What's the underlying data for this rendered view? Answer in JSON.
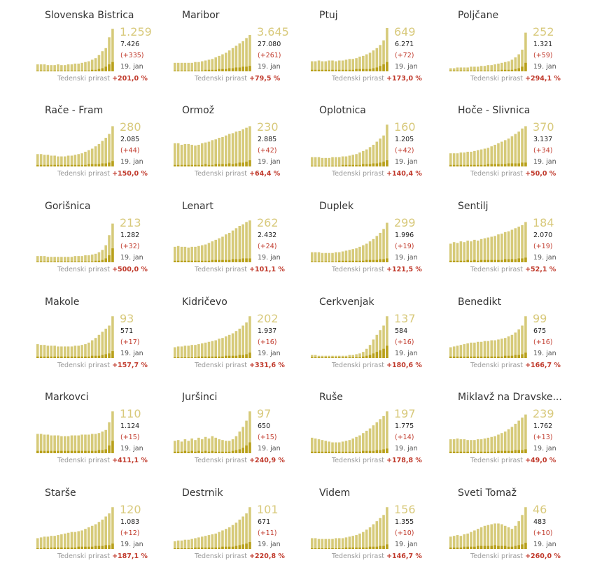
{
  "labels": {
    "growth_label": "Tedenski prirast",
    "date": "19. jan"
  },
  "colors": {
    "bar_total": "#d6ca79",
    "bar_recent": "#b8a01a",
    "accent": "#c0392b"
  },
  "chart_data": [
    {
      "type": "bar",
      "title": "Slovenska Bistrica",
      "current": "1.259",
      "total": "7.426",
      "delta": "(+335)",
      "growth": "+201,0 %",
      "values": [
        9,
        9,
        9,
        8,
        8,
        8,
        9,
        8,
        8,
        9,
        9,
        10,
        10,
        11,
        12,
        13,
        15,
        17,
        21,
        26,
        30,
        44,
        55
      ],
      "recent": [
        1,
        1,
        1,
        1,
        1,
        1,
        1,
        1,
        1,
        1,
        1,
        1,
        1,
        1,
        1,
        1,
        2,
        2,
        3,
        4,
        6,
        9,
        12
      ]
    },
    {
      "type": "bar",
      "title": "Maribor",
      "current": "3.645",
      "total": "27.080",
      "delta": "(+261)",
      "growth": "+79,5 %",
      "values": [
        11,
        11,
        11,
        11,
        11,
        11,
        12,
        12,
        13,
        14,
        15,
        16,
        18,
        20,
        22,
        24,
        27,
        30,
        33,
        36,
        39,
        43,
        47
      ],
      "recent": [
        1,
        1,
        1,
        1,
        1,
        1,
        1,
        1,
        1,
        2,
        2,
        2,
        2,
        3,
        3,
        3,
        4,
        4,
        5,
        5,
        6,
        6,
        7
      ]
    },
    {
      "type": "bar",
      "title": "Ptuj",
      "current": "649",
      "total": "6.271",
      "delta": "(+72)",
      "growth": "+173,0 %",
      "values": [
        13,
        13,
        14,
        13,
        13,
        14,
        14,
        13,
        14,
        14,
        15,
        16,
        16,
        17,
        19,
        20,
        22,
        24,
        27,
        30,
        34,
        40,
        56
      ],
      "recent": [
        2,
        2,
        2,
        2,
        2,
        2,
        2,
        2,
        2,
        2,
        2,
        2,
        2,
        3,
        3,
        3,
        3,
        3,
        4,
        5,
        7,
        9,
        12
      ]
    },
    {
      "type": "bar",
      "title": "Poljčane",
      "current": "252",
      "total": "1.321",
      "delta": "(+59)",
      "growth": "+294,1 %",
      "values": [
        4,
        4,
        5,
        5,
        5,
        5,
        6,
        6,
        6,
        7,
        7,
        8,
        8,
        9,
        10,
        11,
        12,
        13,
        15,
        18,
        22,
        28,
        50
      ],
      "recent": [
        1,
        1,
        1,
        1,
        1,
        1,
        1,
        1,
        1,
        1,
        1,
        1,
        1,
        1,
        1,
        2,
        2,
        2,
        2,
        3,
        4,
        6,
        11
      ]
    },
    {
      "type": "bar",
      "title": "Rače - Fram",
      "current": "280",
      "total": "2.085",
      "delta": "(+44)",
      "growth": "+150,0 %",
      "values": [
        16,
        16,
        15,
        15,
        14,
        14,
        13,
        13,
        13,
        14,
        14,
        15,
        16,
        17,
        19,
        21,
        23,
        26,
        29,
        33,
        37,
        42,
        52
      ],
      "recent": [
        2,
        2,
        2,
        2,
        2,
        2,
        2,
        2,
        2,
        2,
        2,
        2,
        2,
        2,
        2,
        3,
        3,
        3,
        3,
        4,
        4,
        5,
        7
      ]
    },
    {
      "type": "bar",
      "title": "Ormož",
      "current": "230",
      "total": "2.885",
      "delta": "(+42)",
      "growth": "+64,4 %",
      "values": [
        30,
        30,
        28,
        29,
        29,
        28,
        27,
        28,
        30,
        31,
        32,
        34,
        35,
        37,
        38,
        40,
        42,
        43,
        45,
        46,
        48,
        50,
        52
      ],
      "recent": [
        2,
        2,
        2,
        2,
        2,
        2,
        2,
        2,
        2,
        3,
        2,
        2,
        3,
        3,
        3,
        3,
        4,
        3,
        4,
        5,
        5,
        6,
        8
      ]
    },
    {
      "type": "bar",
      "title": "Oplotnica",
      "current": "160",
      "total": "1.205",
      "delta": "(+42)",
      "growth": "+140,4 %",
      "values": [
        12,
        12,
        12,
        11,
        11,
        11,
        12,
        12,
        12,
        13,
        13,
        14,
        15,
        16,
        18,
        20,
        22,
        25,
        28,
        32,
        36,
        40,
        54
      ],
      "recent": [
        1,
        1,
        1,
        1,
        1,
        1,
        1,
        1,
        1,
        2,
        2,
        2,
        2,
        2,
        2,
        3,
        3,
        3,
        4,
        4,
        5,
        6,
        8
      ]
    },
    {
      "type": "bar",
      "title": "Hoče - Slivnica",
      "current": "370",
      "total": "3.137",
      "delta": "(+34)",
      "growth": "+50,0 %",
      "values": [
        17,
        17,
        17,
        18,
        18,
        19,
        19,
        20,
        21,
        22,
        23,
        24,
        26,
        28,
        30,
        32,
        34,
        36,
        39,
        42,
        45,
        49,
        52
      ],
      "recent": [
        2,
        2,
        2,
        2,
        2,
        2,
        2,
        2,
        2,
        2,
        2,
        3,
        3,
        3,
        3,
        3,
        3,
        4,
        4,
        4,
        4,
        5,
        5
      ]
    },
    {
      "type": "bar",
      "title": "Gorišnica",
      "current": "213",
      "total": "1.282",
      "delta": "(+32)",
      "growth": "+500,0 %",
      "values": [
        8,
        8,
        8,
        7,
        7,
        7,
        7,
        7,
        7,
        7,
        7,
        8,
        8,
        8,
        9,
        9,
        10,
        11,
        13,
        16,
        22,
        35,
        50
      ],
      "recent": [
        1,
        1,
        1,
        1,
        1,
        1,
        1,
        1,
        1,
        1,
        1,
        1,
        1,
        1,
        1,
        1,
        1,
        2,
        2,
        3,
        5,
        9,
        18
      ]
    },
    {
      "type": "bar",
      "title": "Lenart",
      "current": "262",
      "total": "2.432",
      "delta": "(+24)",
      "growth": "+101,1 %",
      "values": [
        20,
        21,
        20,
        20,
        19,
        20,
        20,
        21,
        22,
        23,
        25,
        27,
        29,
        31,
        33,
        36,
        38,
        41,
        44,
        47,
        49,
        52,
        54
      ],
      "recent": [
        2,
        2,
        2,
        2,
        2,
        2,
        2,
        2,
        2,
        2,
        2,
        3,
        3,
        3,
        3,
        3,
        3,
        4,
        4,
        4,
        5,
        5,
        5
      ]
    },
    {
      "type": "bar",
      "title": "Duplek",
      "current": "299",
      "total": "1.996",
      "delta": "(+19)",
      "growth": "+121,5 %",
      "values": [
        13,
        13,
        13,
        12,
        12,
        12,
        12,
        13,
        13,
        14,
        15,
        16,
        17,
        18,
        20,
        22,
        24,
        27,
        30,
        34,
        38,
        43,
        51
      ],
      "recent": [
        1,
        1,
        1,
        1,
        1,
        1,
        1,
        1,
        2,
        2,
        2,
        2,
        2,
        2,
        2,
        2,
        3,
        3,
        3,
        3,
        4,
        4,
        5
      ]
    },
    {
      "type": "bar",
      "title": "Šentilj",
      "current": "184",
      "total": "2.070",
      "delta": "(+19)",
      "growth": "+52,1 %",
      "values": [
        24,
        26,
        25,
        27,
        26,
        28,
        27,
        29,
        28,
        30,
        31,
        32,
        33,
        34,
        36,
        37,
        39,
        40,
        42,
        44,
        46,
        48,
        52
      ],
      "recent": [
        2,
        2,
        2,
        2,
        2,
        3,
        2,
        3,
        2,
        3,
        3,
        3,
        3,
        3,
        3,
        3,
        4,
        4,
        4,
        4,
        5,
        5,
        6
      ]
    },
    {
      "type": "bar",
      "title": "Makole",
      "current": "93",
      "total": "571",
      "delta": "(+17)",
      "growth": "+157,7 %",
      "values": [
        18,
        17,
        17,
        16,
        16,
        16,
        15,
        15,
        15,
        15,
        15,
        16,
        16,
        17,
        18,
        20,
        23,
        26,
        30,
        34,
        38,
        42,
        54
      ],
      "recent": [
        2,
        2,
        2,
        2,
        2,
        2,
        2,
        2,
        2,
        2,
        2,
        2,
        2,
        2,
        2,
        2,
        3,
        3,
        3,
        4,
        5,
        6,
        9
      ]
    },
    {
      "type": "bar",
      "title": "Kidričevo",
      "current": "202",
      "total": "1.937",
      "delta": "(+16)",
      "growth": "+331,6 %",
      "values": [
        14,
        15,
        15,
        16,
        16,
        17,
        17,
        18,
        19,
        20,
        21,
        22,
        23,
        25,
        26,
        28,
        30,
        32,
        35,
        38,
        42,
        46,
        54
      ],
      "recent": [
        1,
        1,
        1,
        1,
        1,
        1,
        1,
        2,
        2,
        2,
        2,
        2,
        2,
        2,
        2,
        3,
        3,
        3,
        3,
        4,
        4,
        5,
        7
      ]
    },
    {
      "type": "bar",
      "title": "Cerkvenjak",
      "current": "137",
      "total": "584",
      "delta": "(+16)",
      "growth": "+180,6 %",
      "values": [
        4,
        4,
        3,
        3,
        3,
        3,
        3,
        3,
        3,
        3,
        3,
        4,
        4,
        5,
        6,
        8,
        12,
        17,
        24,
        30,
        36,
        42,
        54
      ],
      "recent": [
        1,
        1,
        1,
        1,
        1,
        1,
        1,
        1,
        1,
        1,
        1,
        1,
        1,
        1,
        1,
        2,
        3,
        4,
        6,
        8,
        10,
        12,
        16
      ]
    },
    {
      "type": "bar",
      "title": "Benedikt",
      "current": "99",
      "total": "675",
      "delta": "(+16)",
      "growth": "+166,7 %",
      "values": [
        14,
        15,
        16,
        17,
        18,
        19,
        20,
        20,
        21,
        21,
        22,
        22,
        23,
        23,
        24,
        25,
        26,
        28,
        30,
        33,
        37,
        42,
        54
      ],
      "recent": [
        2,
        2,
        2,
        2,
        2,
        2,
        2,
        2,
        2,
        2,
        2,
        2,
        2,
        2,
        2,
        2,
        3,
        3,
        3,
        4,
        4,
        5,
        7
      ]
    },
    {
      "type": "bar",
      "title": "Markovci",
      "current": "110",
      "total": "1.124",
      "delta": "(+15)",
      "growth": "+411,1 %",
      "values": [
        25,
        25,
        24,
        24,
        23,
        23,
        23,
        22,
        22,
        22,
        23,
        23,
        23,
        24,
        24,
        24,
        25,
        25,
        26,
        28,
        30,
        40,
        54
      ],
      "recent": [
        3,
        3,
        3,
        3,
        3,
        3,
        3,
        3,
        3,
        3,
        3,
        3,
        3,
        3,
        3,
        3,
        3,
        3,
        4,
        4,
        5,
        10,
        16
      ]
    },
    {
      "type": "bar",
      "title": "Juršinci",
      "current": "97",
      "total": "650",
      "delta": "(+15)",
      "growth": "+240,9 %",
      "values": [
        16,
        17,
        15,
        18,
        16,
        19,
        17,
        20,
        18,
        21,
        19,
        22,
        20,
        18,
        17,
        16,
        16,
        18,
        22,
        28,
        34,
        42,
        54
      ],
      "recent": [
        2,
        2,
        2,
        3,
        2,
        3,
        2,
        3,
        2,
        3,
        2,
        3,
        2,
        2,
        2,
        2,
        2,
        3,
        4,
        5,
        7,
        10,
        14
      ]
    },
    {
      "type": "bar",
      "title": "Ruše",
      "current": "197",
      "total": "1.775",
      "delta": "(+14)",
      "growth": "+178,8 %",
      "values": [
        20,
        19,
        18,
        17,
        16,
        15,
        14,
        14,
        14,
        15,
        16,
        17,
        19,
        21,
        23,
        26,
        29,
        32,
        36,
        40,
        44,
        48,
        54
      ],
      "recent": [
        2,
        2,
        2,
        2,
        2,
        2,
        2,
        2,
        2,
        2,
        2,
        2,
        2,
        2,
        2,
        3,
        3,
        3,
        3,
        4,
        4,
        5,
        6
      ]
    },
    {
      "type": "bar",
      "title": "Miklavž na Dravske...",
      "current": "239",
      "total": "1.762",
      "delta": "(+13)",
      "growth": "+49,0 %",
      "values": [
        18,
        18,
        19,
        18,
        18,
        17,
        17,
        17,
        18,
        18,
        19,
        20,
        21,
        22,
        24,
        26,
        28,
        31,
        34,
        38,
        42,
        46,
        50
      ],
      "recent": [
        2,
        2,
        2,
        2,
        2,
        2,
        2,
        2,
        2,
        2,
        2,
        2,
        2,
        2,
        3,
        3,
        3,
        3,
        3,
        4,
        4,
        4,
        5
      ]
    },
    {
      "type": "bar",
      "title": "Starše",
      "current": "120",
      "total": "1.083",
      "delta": "(+12)",
      "growth": "+187,1 %",
      "values": [
        14,
        15,
        16,
        16,
        17,
        17,
        18,
        19,
        20,
        21,
        22,
        22,
        23,
        24,
        26,
        28,
        30,
        32,
        35,
        38,
        42,
        46,
        54
      ],
      "recent": [
        1,
        1,
        2,
        1,
        2,
        2,
        2,
        2,
        2,
        2,
        2,
        2,
        3,
        3,
        3,
        3,
        3,
        4,
        4,
        4,
        5,
        5,
        7
      ]
    },
    {
      "type": "bar",
      "title": "Destrnik",
      "current": "101",
      "total": "671",
      "delta": "(+11)",
      "growth": "+220,8 %",
      "values": [
        10,
        11,
        11,
        12,
        12,
        13,
        14,
        15,
        16,
        17,
        18,
        19,
        20,
        22,
        24,
        26,
        28,
        31,
        34,
        38,
        42,
        46,
        54
      ],
      "recent": [
        1,
        1,
        1,
        1,
        1,
        1,
        2,
        2,
        2,
        2,
        2,
        2,
        2,
        2,
        3,
        3,
        3,
        3,
        4,
        5,
        6,
        7,
        9
      ]
    },
    {
      "type": "bar",
      "title": "Videm",
      "current": "156",
      "total": "1.355",
      "delta": "(+10)",
      "growth": "+146,7 %",
      "values": [
        14,
        14,
        13,
        13,
        13,
        13,
        13,
        14,
        14,
        14,
        15,
        16,
        17,
        18,
        20,
        22,
        25,
        28,
        32,
        36,
        40,
        44,
        54
      ],
      "recent": [
        1,
        1,
        1,
        1,
        1,
        1,
        1,
        1,
        1,
        1,
        2,
        2,
        2,
        2,
        2,
        2,
        2,
        3,
        3,
        3,
        4,
        4,
        6
      ]
    },
    {
      "type": "bar",
      "title": "Sveti Tomaž",
      "current": "46",
      "total": "483",
      "delta": "(+10)",
      "growth": "+260,0 %",
      "values": [
        16,
        17,
        18,
        17,
        19,
        20,
        22,
        24,
        26,
        28,
        30,
        31,
        32,
        33,
        33,
        32,
        30,
        28,
        26,
        30,
        36,
        44,
        54
      ],
      "recent": [
        2,
        2,
        2,
        2,
        3,
        3,
        3,
        3,
        4,
        4,
        4,
        4,
        4,
        5,
        4,
        4,
        4,
        3,
        3,
        4,
        5,
        6,
        8
      ]
    }
  ]
}
